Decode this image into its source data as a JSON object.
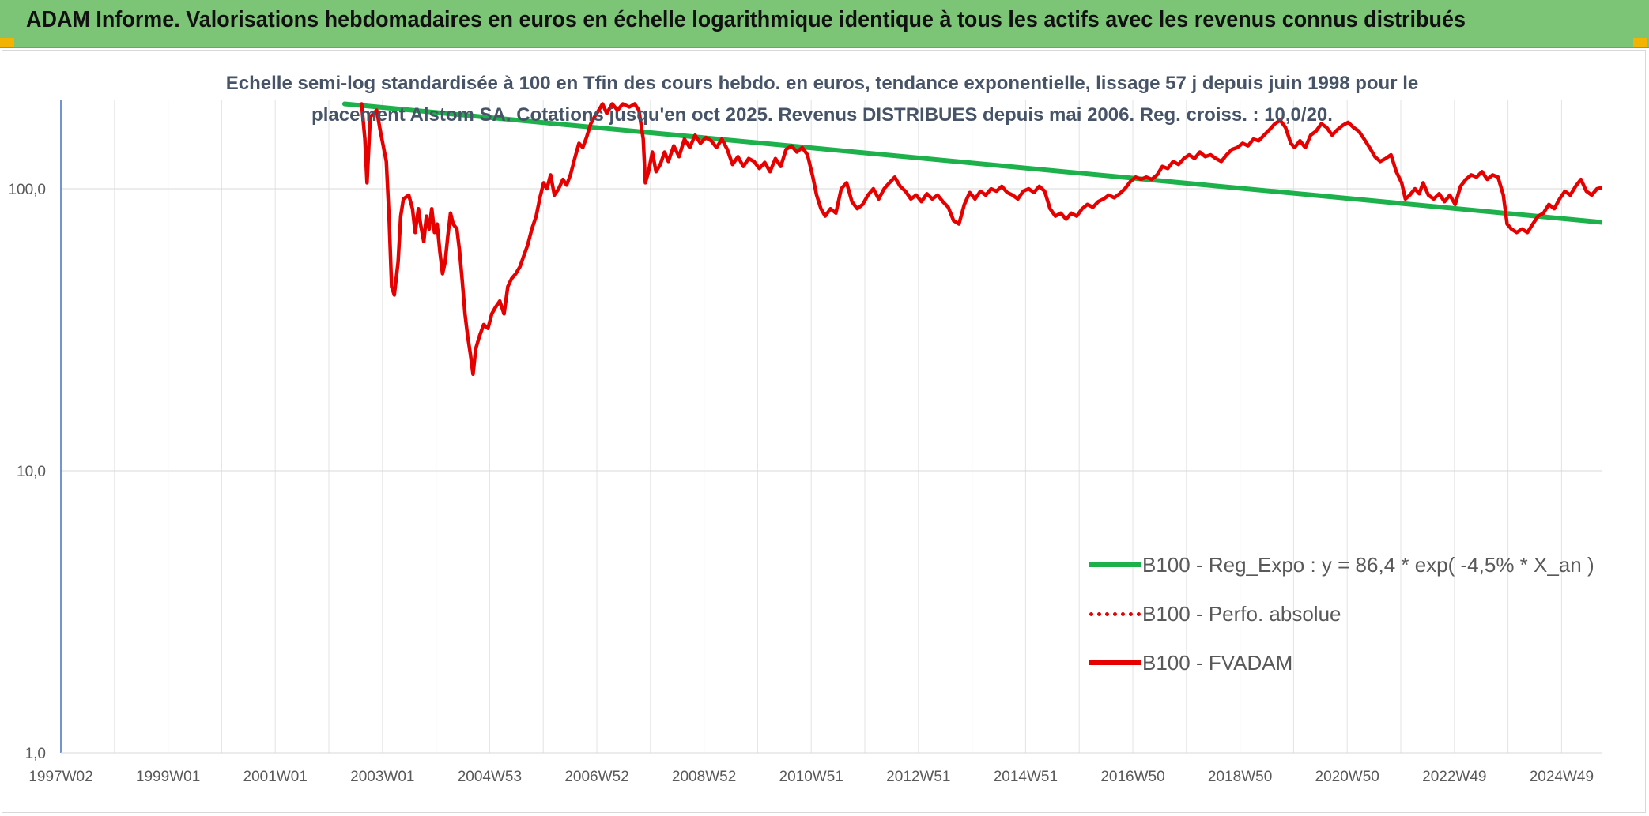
{
  "header": {
    "title": "ADAM Informe. Valorisations hebdomadaires en euros en échelle logarithmique identique à tous les actifs avec les revenus connus distribués"
  },
  "colors": {
    "banner": "#7cc576",
    "corner_marks": "#f2b400",
    "regression": "#1db14b",
    "fvadam": "#e60000",
    "perf_absolue": "#e60000"
  },
  "chart_data": {
    "type": "line",
    "title": "Echelle semi-log standardisée à 100 en Tfin des cours hebdo. en euros, tendance exponentielle, lissage 57 j depuis juin 1998 pour le placement Alstom SA. Cotations jusqu'en oct 2025. Revenus DISTRIBUES depuis mai 2006. Reg. croiss. : 10,0/20.",
    "y_scale": "log",
    "ylim": [
      1,
      200
    ],
    "y_ticks": [
      "1,0",
      "10,0",
      "100,0"
    ],
    "x_tick_labels": [
      "1997W02",
      "1999W01",
      "2001W01",
      "2003W01",
      "2004W53",
      "2006W52",
      "2008W52",
      "2010W51",
      "2012W51",
      "2014W51",
      "2016W50",
      "2018W50",
      "2020W50",
      "2022W49",
      "2024W49"
    ],
    "xlim": [
      1997.0,
      2025.8
    ],
    "grid": "vertical and horizontal",
    "legend_position": "bottom-right, inside plot",
    "series": [
      {
        "name": "B100 - Reg_Expo : y = 86,4 * exp( -4,5% *  X_an )",
        "style": "solid green",
        "points": [
          [
            2002.3,
            200
          ],
          [
            2025.8,
            76
          ]
        ]
      },
      {
        "name": "B100 - Perfo. absolue",
        "style": "dotted red",
        "points": []
      },
      {
        "name": "B100 - FVADAM",
        "style": "solid red",
        "points": [
          [
            2002.62,
            200
          ],
          [
            2002.68,
            150
          ],
          [
            2002.72,
            105
          ],
          [
            2002.78,
            180
          ],
          [
            2002.9,
            190
          ],
          [
            2002.97,
            160
          ],
          [
            2003.08,
            125
          ],
          [
            2003.13,
            80
          ],
          [
            2003.18,
            45
          ],
          [
            2003.23,
            42
          ],
          [
            2003.3,
            55
          ],
          [
            2003.35,
            80
          ],
          [
            2003.4,
            92
          ],
          [
            2003.5,
            95
          ],
          [
            2003.57,
            85
          ],
          [
            2003.62,
            70
          ],
          [
            2003.68,
            85
          ],
          [
            2003.72,
            75
          ],
          [
            2003.78,
            65
          ],
          [
            2003.83,
            80
          ],
          [
            2003.88,
            72
          ],
          [
            2003.93,
            85
          ],
          [
            2003.98,
            70
          ],
          [
            2004.03,
            75
          ],
          [
            2004.08,
            60
          ],
          [
            2004.13,
            50
          ],
          [
            2004.18,
            55
          ],
          [
            2004.23,
            68
          ],
          [
            2004.28,
            82
          ],
          [
            2004.33,
            75
          ],
          [
            2004.4,
            72
          ],
          [
            2004.45,
            60
          ],
          [
            2004.5,
            47
          ],
          [
            2004.55,
            36
          ],
          [
            2004.6,
            30
          ],
          [
            2004.65,
            26
          ],
          [
            2004.7,
            22
          ],
          [
            2004.75,
            27
          ],
          [
            2004.82,
            30
          ],
          [
            2004.9,
            33
          ],
          [
            2004.98,
            32
          ],
          [
            2005.05,
            36
          ],
          [
            2005.12,
            38
          ],
          [
            2005.2,
            40
          ],
          [
            2005.28,
            36
          ],
          [
            2005.35,
            45
          ],
          [
            2005.42,
            48
          ],
          [
            2005.5,
            50
          ],
          [
            2005.58,
            53
          ],
          [
            2005.65,
            58
          ],
          [
            2005.72,
            63
          ],
          [
            2005.8,
            72
          ],
          [
            2005.88,
            80
          ],
          [
            2005.95,
            93
          ],
          [
            2006.02,
            105
          ],
          [
            2006.08,
            100
          ],
          [
            2006.15,
            112
          ],
          [
            2006.22,
            95
          ],
          [
            2006.3,
            100
          ],
          [
            2006.38,
            108
          ],
          [
            2006.45,
            103
          ],
          [
            2006.52,
            112
          ],
          [
            2006.6,
            128
          ],
          [
            2006.68,
            145
          ],
          [
            2006.75,
            140
          ],
          [
            2006.82,
            152
          ],
          [
            2006.9,
            170
          ],
          [
            2006.97,
            180
          ],
          [
            2007.05,
            190
          ],
          [
            2007.12,
            200
          ],
          [
            2007.2,
            185
          ],
          [
            2007.3,
            200
          ],
          [
            2007.4,
            190
          ],
          [
            2007.5,
            200
          ],
          [
            2007.62,
            195
          ],
          [
            2007.72,
            200
          ],
          [
            2007.8,
            190
          ],
          [
            2007.88,
            150
          ],
          [
            2007.92,
            105
          ],
          [
            2007.98,
            115
          ],
          [
            2008.05,
            135
          ],
          [
            2008.12,
            115
          ],
          [
            2008.2,
            122
          ],
          [
            2008.28,
            135
          ],
          [
            2008.35,
            125
          ],
          [
            2008.45,
            142
          ],
          [
            2008.55,
            130
          ],
          [
            2008.65,
            150
          ],
          [
            2008.75,
            140
          ],
          [
            2008.85,
            155
          ],
          [
            2008.95,
            145
          ],
          [
            2009.05,
            152
          ],
          [
            2009.15,
            148
          ],
          [
            2009.25,
            140
          ],
          [
            2009.35,
            150
          ],
          [
            2009.45,
            138
          ],
          [
            2009.55,
            122
          ],
          [
            2009.65,
            130
          ],
          [
            2009.75,
            120
          ],
          [
            2009.85,
            128
          ],
          [
            2009.95,
            125
          ],
          [
            2010.05,
            118
          ],
          [
            2010.15,
            124
          ],
          [
            2010.25,
            115
          ],
          [
            2010.35,
            128
          ],
          [
            2010.45,
            120
          ],
          [
            2010.55,
            138
          ],
          [
            2010.65,
            142
          ],
          [
            2010.75,
            135
          ],
          [
            2010.85,
            140
          ],
          [
            2010.95,
            132
          ],
          [
            2011.05,
            110
          ],
          [
            2011.12,
            95
          ],
          [
            2011.2,
            85
          ],
          [
            2011.28,
            80
          ],
          [
            2011.38,
            85
          ],
          [
            2011.48,
            82
          ],
          [
            2011.58,
            100
          ],
          [
            2011.68,
            105
          ],
          [
            2011.78,
            90
          ],
          [
            2011.88,
            85
          ],
          [
            2011.98,
            88
          ],
          [
            2012.08,
            95
          ],
          [
            2012.18,
            100
          ],
          [
            2012.28,
            92
          ],
          [
            2012.38,
            100
          ],
          [
            2012.48,
            105
          ],
          [
            2012.58,
            110
          ],
          [
            2012.68,
            102
          ],
          [
            2012.78,
            98
          ],
          [
            2012.88,
            92
          ],
          [
            2012.98,
            95
          ],
          [
            2013.08,
            90
          ],
          [
            2013.18,
            96
          ],
          [
            2013.28,
            92
          ],
          [
            2013.38,
            95
          ],
          [
            2013.48,
            90
          ],
          [
            2013.58,
            86
          ],
          [
            2013.68,
            77
          ],
          [
            2013.78,
            75
          ],
          [
            2013.88,
            88
          ],
          [
            2013.98,
            97
          ],
          [
            2014.08,
            92
          ],
          [
            2014.18,
            98
          ],
          [
            2014.28,
            95
          ],
          [
            2014.38,
            100
          ],
          [
            2014.48,
            98
          ],
          [
            2014.58,
            102
          ],
          [
            2014.68,
            97
          ],
          [
            2014.78,
            95
          ],
          [
            2014.88,
            92
          ],
          [
            2014.98,
            98
          ],
          [
            2015.08,
            100
          ],
          [
            2015.18,
            97
          ],
          [
            2015.28,
            102
          ],
          [
            2015.38,
            98
          ],
          [
            2015.48,
            85
          ],
          [
            2015.58,
            80
          ],
          [
            2015.68,
            82
          ],
          [
            2015.78,
            78
          ],
          [
            2015.88,
            82
          ],
          [
            2015.98,
            80
          ],
          [
            2016.08,
            85
          ],
          [
            2016.18,
            88
          ],
          [
            2016.28,
            86
          ],
          [
            2016.38,
            90
          ],
          [
            2016.48,
            92
          ],
          [
            2016.58,
            95
          ],
          [
            2016.68,
            93
          ],
          [
            2016.78,
            96
          ],
          [
            2016.88,
            100
          ],
          [
            2016.98,
            106
          ],
          [
            2017.08,
            110
          ],
          [
            2017.18,
            108
          ],
          [
            2017.28,
            110
          ],
          [
            2017.38,
            108
          ],
          [
            2017.48,
            112
          ],
          [
            2017.58,
            120
          ],
          [
            2017.68,
            118
          ],
          [
            2017.78,
            125
          ],
          [
            2017.88,
            122
          ],
          [
            2017.98,
            128
          ],
          [
            2018.08,
            132
          ],
          [
            2018.18,
            128
          ],
          [
            2018.28,
            135
          ],
          [
            2018.38,
            130
          ],
          [
            2018.48,
            132
          ],
          [
            2018.58,
            128
          ],
          [
            2018.68,
            125
          ],
          [
            2018.78,
            132
          ],
          [
            2018.88,
            138
          ],
          [
            2018.98,
            140
          ],
          [
            2019.08,
            145
          ],
          [
            2019.18,
            142
          ],
          [
            2019.28,
            150
          ],
          [
            2019.38,
            148
          ],
          [
            2019.48,
            155
          ],
          [
            2019.58,
            162
          ],
          [
            2019.68,
            170
          ],
          [
            2019.78,
            175
          ],
          [
            2019.88,
            165
          ],
          [
            2019.98,
            145
          ],
          [
            2020.05,
            140
          ],
          [
            2020.15,
            148
          ],
          [
            2020.25,
            140
          ],
          [
            2020.35,
            155
          ],
          [
            2020.45,
            160
          ],
          [
            2020.55,
            170
          ],
          [
            2020.65,
            165
          ],
          [
            2020.75,
            155
          ],
          [
            2020.85,
            162
          ],
          [
            2020.95,
            168
          ],
          [
            2021.05,
            172
          ],
          [
            2021.15,
            165
          ],
          [
            2021.25,
            160
          ],
          [
            2021.35,
            150
          ],
          [
            2021.45,
            140
          ],
          [
            2021.55,
            130
          ],
          [
            2021.65,
            125
          ],
          [
            2021.75,
            128
          ],
          [
            2021.85,
            132
          ],
          [
            2021.95,
            115
          ],
          [
            2022.05,
            105
          ],
          [
            2022.12,
            92
          ],
          [
            2022.2,
            95
          ],
          [
            2022.3,
            100
          ],
          [
            2022.38,
            96
          ],
          [
            2022.45,
            105
          ],
          [
            2022.55,
            95
          ],
          [
            2022.65,
            92
          ],
          [
            2022.75,
            96
          ],
          [
            2022.85,
            90
          ],
          [
            2022.95,
            95
          ],
          [
            2023.05,
            88
          ],
          [
            2023.15,
            102
          ],
          [
            2023.25,
            108
          ],
          [
            2023.35,
            112
          ],
          [
            2023.45,
            110
          ],
          [
            2023.55,
            115
          ],
          [
            2023.65,
            108
          ],
          [
            2023.75,
            112
          ],
          [
            2023.85,
            110
          ],
          [
            2023.95,
            95
          ],
          [
            2024.02,
            75
          ],
          [
            2024.1,
            72
          ],
          [
            2024.2,
            70
          ],
          [
            2024.3,
            72
          ],
          [
            2024.4,
            70
          ],
          [
            2024.5,
            75
          ],
          [
            2024.6,
            80
          ],
          [
            2024.7,
            82
          ],
          [
            2024.8,
            88
          ],
          [
            2024.9,
            85
          ],
          [
            2025.0,
            92
          ],
          [
            2025.1,
            98
          ],
          [
            2025.2,
            95
          ],
          [
            2025.3,
            102
          ],
          [
            2025.4,
            108
          ],
          [
            2025.5,
            98
          ],
          [
            2025.6,
            95
          ],
          [
            2025.7,
            100
          ],
          [
            2025.8,
            101
          ]
        ]
      }
    ]
  }
}
